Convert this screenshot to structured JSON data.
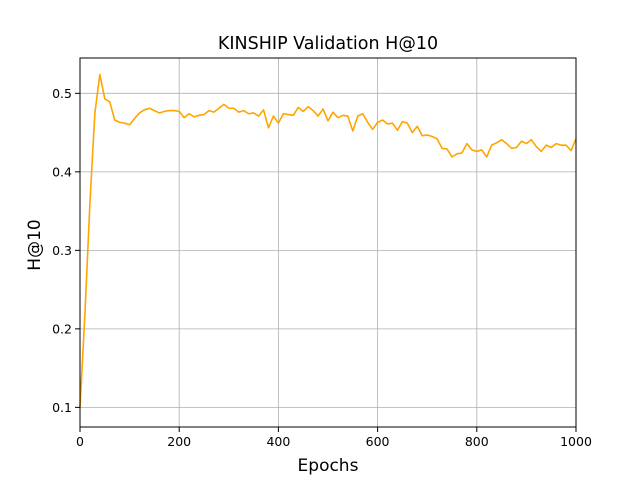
{
  "chart_data": {
    "type": "line",
    "title": "KINSHIP Validation H@10",
    "xlabel": "Epochs",
    "ylabel": "H@10",
    "xlim": [
      0,
      1000
    ],
    "ylim": [
      0.075,
      0.545
    ],
    "xticks": [
      0,
      200,
      400,
      600,
      800,
      1000
    ],
    "yticks": [
      0.1,
      0.2,
      0.3,
      0.4,
      0.5
    ],
    "xtick_labels": [
      "0",
      "200",
      "400",
      "600",
      "800",
      "1000"
    ],
    "ytick_labels": [
      "0.1",
      "0.2",
      "0.3",
      "0.4",
      "0.5"
    ],
    "grid": true,
    "legend": "none",
    "series": [
      {
        "color": "#ffa500",
        "x": [
          0,
          10,
          20,
          30,
          40,
          50,
          60,
          70,
          80,
          90,
          100,
          110,
          120,
          130,
          140,
          150,
          160,
          170,
          180,
          190,
          200,
          210,
          220,
          230,
          240,
          250,
          260,
          270,
          280,
          290,
          300,
          310,
          320,
          330,
          340,
          350,
          360,
          370,
          380,
          390,
          400,
          410,
          420,
          430,
          440,
          450,
          460,
          470,
          480,
          490,
          500,
          510,
          520,
          530,
          540,
          550,
          560,
          570,
          580,
          590,
          600,
          610,
          620,
          630,
          640,
          650,
          660,
          670,
          680,
          690,
          700,
          710,
          720,
          730,
          740,
          750,
          760,
          770,
          780,
          790,
          800,
          810,
          820,
          830,
          840,
          850,
          860,
          870,
          880,
          890,
          900,
          910,
          920,
          930,
          940,
          950,
          960,
          970,
          980,
          990,
          1000
        ],
        "y": [
          0.1,
          0.22,
          0.36,
          0.475,
          0.524,
          0.493,
          0.489,
          0.466,
          0.463,
          0.462,
          0.46,
          0.468,
          0.475,
          0.479,
          0.481,
          0.478,
          0.475,
          0.477,
          0.478,
          0.478,
          0.477,
          0.469,
          0.474,
          0.47,
          0.472,
          0.473,
          0.478,
          0.476,
          0.481,
          0.486,
          0.481,
          0.481,
          0.476,
          0.478,
          0.474,
          0.475,
          0.471,
          0.479,
          0.456,
          0.471,
          0.462,
          0.474,
          0.473,
          0.472,
          0.482,
          0.477,
          0.483,
          0.478,
          0.471,
          0.48,
          0.465,
          0.476,
          0.469,
          0.472,
          0.471,
          0.452,
          0.471,
          0.474,
          0.463,
          0.454,
          0.463,
          0.466,
          0.461,
          0.462,
          0.453,
          0.464,
          0.462,
          0.45,
          0.458,
          0.446,
          0.447,
          0.445,
          0.442,
          0.43,
          0.429,
          0.419,
          0.423,
          0.424,
          0.436,
          0.428,
          0.426,
          0.428,
          0.419,
          0.434,
          0.437,
          0.441,
          0.436,
          0.43,
          0.431,
          0.439,
          0.436,
          0.441,
          0.432,
          0.426,
          0.434,
          0.431,
          0.436,
          0.434,
          0.434,
          0.427,
          0.442
        ]
      }
    ]
  }
}
